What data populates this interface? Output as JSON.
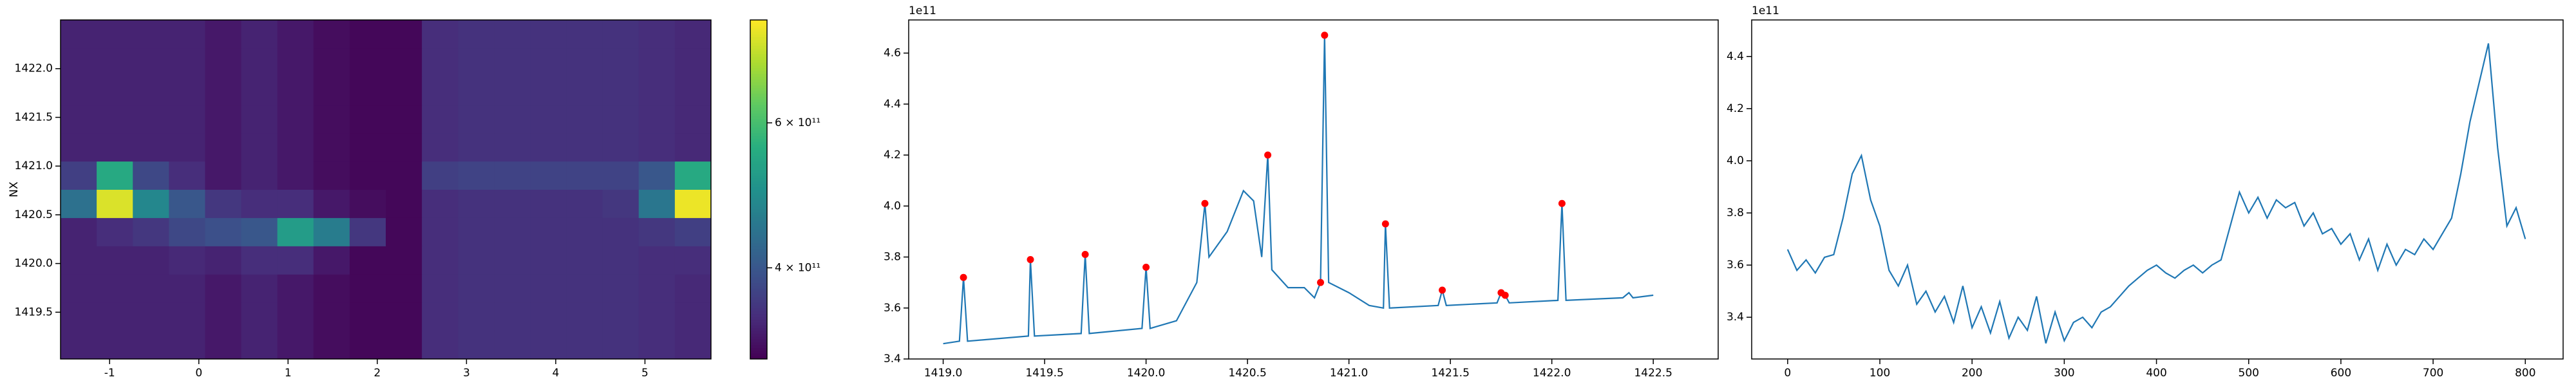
{
  "chart_data": [
    {
      "type": "heatmap",
      "ylabel": "NX",
      "colormap": "viridis",
      "colorbar_scale": "log",
      "xlim": [
        -1.55,
        5.74
      ],
      "ylim": [
        1419.02,
        1422.5
      ],
      "xticks": [
        -1,
        0,
        1,
        2,
        3,
        4,
        5
      ],
      "yticks": [
        1419.5,
        {
          "value": 1420.0,
          "label": "1420.0"
        },
        1420.5,
        {
          "value": 1421.0,
          "label": "1421.0"
        },
        1421.5,
        {
          "value": 1422.0,
          "label": "1422.0"
        }
      ],
      "clim": [
        310000000000.0,
        800000000000.0
      ],
      "cticks": [
        {
          "value": 400000000000.0,
          "label": "4 × 10¹¹"
        },
        {
          "value": 600000000000.0,
          "label": "6 × 10¹¹"
        }
      ],
      "z": [
        [
          340000000000.0,
          340000000000.0,
          340000000000.0,
          340000000000.0,
          330000000000.0,
          340000000000.0,
          330000000000.0,
          320000000000.0,
          315000000000.0,
          315000000000.0,
          350000000000.0,
          355000000000.0,
          355000000000.0,
          355000000000.0,
          355000000000.0,
          355000000000.0,
          350000000000.0,
          345000000000.0
        ],
        [
          340000000000.0,
          340000000000.0,
          340000000000.0,
          340000000000.0,
          330000000000.0,
          340000000000.0,
          330000000000.0,
          320000000000.0,
          315000000000.0,
          315000000000.0,
          350000000000.0,
          355000000000.0,
          355000000000.0,
          355000000000.0,
          355000000000.0,
          355000000000.0,
          350000000000.0,
          345000000000.0
        ],
        [
          340000000000.0,
          340000000000.0,
          340000000000.0,
          340000000000.0,
          330000000000.0,
          340000000000.0,
          330000000000.0,
          320000000000.0,
          315000000000.0,
          315000000000.0,
          350000000000.0,
          355000000000.0,
          355000000000.0,
          355000000000.0,
          355000000000.0,
          355000000000.0,
          350000000000.0,
          345000000000.0
        ],
        [
          340000000000.0,
          340000000000.0,
          340000000000.0,
          345000000000.0,
          340000000000.0,
          350000000000.0,
          350000000000.0,
          330000000000.0,
          315000000000.0,
          315000000000.0,
          350000000000.0,
          355000000000.0,
          355000000000.0,
          355000000000.0,
          355000000000.0,
          355000000000.0,
          350000000000.0,
          350000000000.0
        ],
        [
          340000000000.0,
          350000000000.0,
          360000000000.0,
          380000000000.0,
          390000000000.0,
          400000000000.0,
          520000000000.0,
          460000000000.0,
          360000000000.0,
          315000000000.0,
          350000000000.0,
          355000000000.0,
          355000000000.0,
          355000000000.0,
          355000000000.0,
          355000000000.0,
          360000000000.0,
          370000000000.0
        ],
        [
          440000000000.0,
          760000000000.0,
          480000000000.0,
          400000000000.0,
          360000000000.0,
          350000000000.0,
          350000000000.0,
          330000000000.0,
          320000000000.0,
          315000000000.0,
          350000000000.0,
          355000000000.0,
          355000000000.0,
          355000000000.0,
          355000000000.0,
          360000000000.0,
          450000000000.0,
          780000000000.0
        ],
        [
          370000000000.0,
          550000000000.0,
          380000000000.0,
          350000000000.0,
          330000000000.0,
          340000000000.0,
          330000000000.0,
          320000000000.0,
          315000000000.0,
          315000000000.0,
          370000000000.0,
          375000000000.0,
          375000000000.0,
          375000000000.0,
          375000000000.0,
          375000000000.0,
          400000000000.0,
          550000000000.0
        ],
        [
          340000000000.0,
          340000000000.0,
          340000000000.0,
          340000000000.0,
          330000000000.0,
          340000000000.0,
          330000000000.0,
          320000000000.0,
          315000000000.0,
          315000000000.0,
          350000000000.0,
          355000000000.0,
          355000000000.0,
          355000000000.0,
          355000000000.0,
          355000000000.0,
          350000000000.0,
          345000000000.0
        ],
        [
          340000000000.0,
          340000000000.0,
          340000000000.0,
          340000000000.0,
          330000000000.0,
          340000000000.0,
          330000000000.0,
          320000000000.0,
          315000000000.0,
          315000000000.0,
          350000000000.0,
          355000000000.0,
          355000000000.0,
          355000000000.0,
          355000000000.0,
          355000000000.0,
          350000000000.0,
          345000000000.0
        ],
        [
          340000000000.0,
          340000000000.0,
          340000000000.0,
          340000000000.0,
          330000000000.0,
          340000000000.0,
          330000000000.0,
          320000000000.0,
          315000000000.0,
          315000000000.0,
          350000000000.0,
          355000000000.0,
          355000000000.0,
          355000000000.0,
          355000000000.0,
          355000000000.0,
          350000000000.0,
          345000000000.0
        ],
        [
          340000000000.0,
          340000000000.0,
          340000000000.0,
          340000000000.0,
          330000000000.0,
          340000000000.0,
          330000000000.0,
          320000000000.0,
          315000000000.0,
          315000000000.0,
          350000000000.0,
          355000000000.0,
          355000000000.0,
          355000000000.0,
          355000000000.0,
          355000000000.0,
          350000000000.0,
          345000000000.0
        ],
        [
          340000000000.0,
          340000000000.0,
          340000000000.0,
          340000000000.0,
          330000000000.0,
          340000000000.0,
          330000000000.0,
          320000000000.0,
          315000000000.0,
          315000000000.0,
          350000000000.0,
          355000000000.0,
          355000000000.0,
          355000000000.0,
          355000000000.0,
          355000000000.0,
          350000000000.0,
          345000000000.0
        ]
      ]
    },
    {
      "type": "line",
      "offset_label": "1e11",
      "xlim": [
        1418.83,
        1422.82
      ],
      "ylim": [
        3.4,
        4.73
      ],
      "xticks": [
        {
          "value": 1419.0,
          "label": "1419.0"
        },
        1419.5,
        {
          "value": 1420.0,
          "label": "1420.0"
        },
        1420.5,
        {
          "value": 1421.0,
          "label": "1421.0"
        },
        1421.5,
        {
          "value": 1422.0,
          "label": "1422.0"
        },
        1422.5
      ],
      "yticks": [
        3.4,
        3.6,
        3.8,
        {
          "value": 4.0,
          "label": "4.0"
        },
        4.2,
        4.4,
        4.6
      ],
      "series": [
        {
          "style": "line",
          "color": "#1f77b4",
          "x": [
            1419.0,
            1419.08,
            1419.1,
            1419.12,
            1419.42,
            1419.43,
            1419.45,
            1419.68,
            1419.7,
            1419.72,
            1419.98,
            1420.0,
            1420.02,
            1420.15,
            1420.25,
            1420.29,
            1420.31,
            1420.4,
            1420.48,
            1420.53,
            1420.57,
            1420.6,
            1420.62,
            1420.7,
            1420.78,
            1420.83,
            1420.86,
            1420.88,
            1420.9,
            1421.0,
            1421.1,
            1421.17,
            1421.18,
            1421.2,
            1421.44,
            1421.46,
            1421.48,
            1421.73,
            1421.75,
            1421.77,
            1421.79,
            1422.03,
            1422.05,
            1422.07,
            1422.35,
            1422.38,
            1422.4,
            1422.5
          ],
          "values": [
            3.46,
            3.47,
            3.72,
            3.47,
            3.49,
            3.79,
            3.49,
            3.5,
            3.81,
            3.5,
            3.52,
            3.76,
            3.52,
            3.55,
            3.7,
            4.01,
            3.8,
            3.9,
            4.06,
            4.02,
            3.8,
            4.2,
            3.75,
            3.68,
            3.68,
            3.64,
            3.7,
            4.67,
            3.7,
            3.66,
            3.61,
            3.6,
            3.93,
            3.6,
            3.61,
            3.67,
            3.61,
            3.62,
            3.66,
            3.65,
            3.62,
            3.63,
            4.01,
            3.63,
            3.64,
            3.66,
            3.64,
            3.65
          ]
        },
        {
          "style": "markers",
          "color": "red",
          "x": [
            1419.1,
            1419.43,
            1419.7,
            1420.0,
            1420.29,
            1420.6,
            1420.86,
            1420.88,
            1421.18,
            1421.46,
            1421.75,
            1421.77,
            1422.05
          ],
          "values": [
            3.72,
            3.79,
            3.81,
            3.76,
            4.01,
            4.2,
            3.7,
            4.67,
            3.93,
            3.67,
            3.66,
            3.65,
            4.01
          ]
        }
      ]
    },
    {
      "type": "line",
      "offset_label": "1e11",
      "xlim": [
        -39,
        841
      ],
      "ylim": [
        3.24,
        4.54
      ],
      "xticks": [
        0,
        100,
        200,
        300,
        400,
        500,
        600,
        700,
        800
      ],
      "yticks": [
        3.4,
        3.6,
        3.8,
        {
          "value": 4.0,
          "label": "4.0"
        },
        4.2,
        4.4
      ],
      "series": [
        {
          "style": "line",
          "color": "#1f77b4",
          "x": [
            0,
            10,
            20,
            30,
            40,
            50,
            60,
            70,
            80,
            90,
            100,
            110,
            120,
            130,
            140,
            150,
            160,
            170,
            180,
            190,
            200,
            210,
            220,
            230,
            240,
            250,
            260,
            270,
            280,
            290,
            300,
            310,
            320,
            330,
            340,
            350,
            360,
            370,
            380,
            390,
            400,
            410,
            420,
            430,
            440,
            450,
            460,
            470,
            480,
            490,
            500,
            510,
            520,
            530,
            540,
            550,
            560,
            570,
            580,
            590,
            600,
            610,
            620,
            630,
            640,
            650,
            660,
            670,
            680,
            690,
            700,
            710,
            720,
            730,
            740,
            750,
            760,
            770,
            780,
            790,
            800
          ],
          "values": [
            3.66,
            3.58,
            3.62,
            3.57,
            3.63,
            3.64,
            3.78,
            3.95,
            4.02,
            3.85,
            3.75,
            3.58,
            3.52,
            3.6,
            3.45,
            3.5,
            3.42,
            3.48,
            3.38,
            3.52,
            3.36,
            3.44,
            3.34,
            3.46,
            3.32,
            3.4,
            3.35,
            3.48,
            3.3,
            3.42,
            3.31,
            3.38,
            3.4,
            3.36,
            3.42,
            3.44,
            3.48,
            3.52,
            3.55,
            3.58,
            3.6,
            3.57,
            3.55,
            3.58,
            3.6,
            3.57,
            3.6,
            3.62,
            3.75,
            3.88,
            3.8,
            3.86,
            3.78,
            3.85,
            3.82,
            3.84,
            3.75,
            3.8,
            3.72,
            3.74,
            3.68,
            3.72,
            3.62,
            3.7,
            3.58,
            3.68,
            3.6,
            3.66,
            3.64,
            3.7,
            3.66,
            3.72,
            3.78,
            3.95,
            4.15,
            4.3,
            4.45,
            4.05,
            3.75,
            3.82,
            3.7
          ]
        }
      ]
    }
  ]
}
